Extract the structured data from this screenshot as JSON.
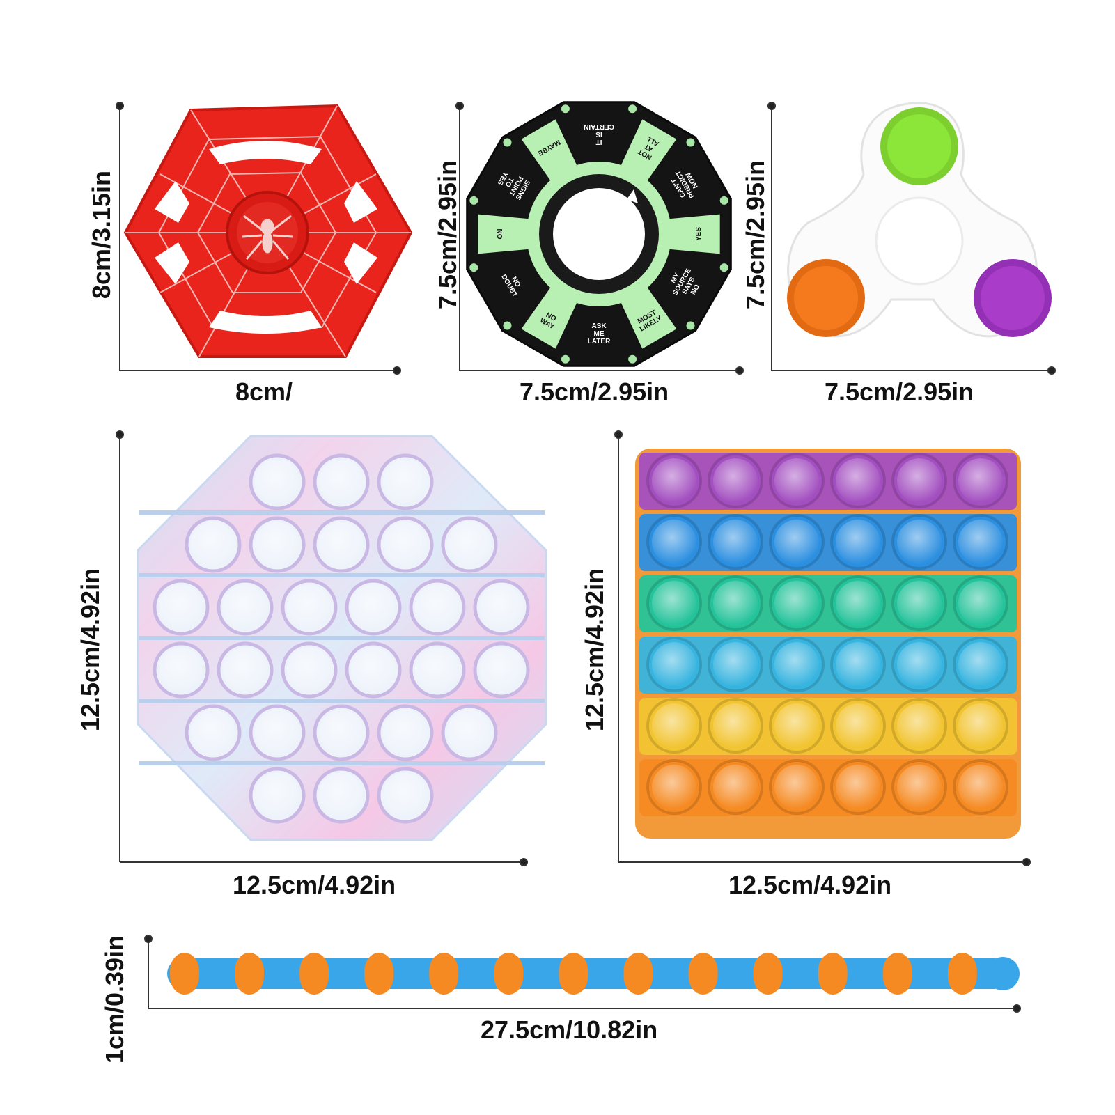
{
  "products": [
    {
      "id": "spider-web-spinner",
      "width_label": "8cm/",
      "height_label": "8cm/3.15in",
      "color": "#e8241c"
    },
    {
      "id": "decision-wheel-spinner",
      "width_label": "7.5cm/2.95in",
      "height_label": "7.5cm/2.95in",
      "color": "#111111",
      "wheel_labels": [
        "IT IS CERTAIN",
        "NOT AT ALL",
        "CAN'T PREDICT NOW",
        "YES",
        "MY SOURCE SAYS NO",
        "MOST LIKELY",
        "ASK ME LATER",
        "NO WAY",
        "NO DOUBT",
        "NO",
        "SIGNS POINT TO YES",
        "MAYBE"
      ]
    },
    {
      "id": "simple-dimple-spinner",
      "width_label": "7.5cm/2.95in",
      "height_label": "7.5cm/2.95in",
      "color": "#ffffff",
      "bubble_colors": [
        "#8ce63a",
        "#f57a1e",
        "#a93dc9"
      ]
    },
    {
      "id": "octagon-pop-it",
      "width_label": "12.5cm/4.92in",
      "height_label": "12.5cm/4.92in",
      "row_counts": [
        3,
        5,
        6,
        6,
        5,
        3
      ]
    },
    {
      "id": "rainbow-square-pop-it",
      "width_label": "12.5cm/4.92in",
      "height_label": "12.5cm/4.92in",
      "row_colors": [
        "#a34fc0",
        "#2c8fe0",
        "#25c39a",
        "#37b4df",
        "#f2c431",
        "#f58a22"
      ]
    },
    {
      "id": "wacky-track-snake",
      "width_label": "27.5cm/10.82in",
      "height_label": "1cm/0.39in",
      "colors": [
        "#f58a22",
        "#3aa6ea"
      ]
    }
  ]
}
